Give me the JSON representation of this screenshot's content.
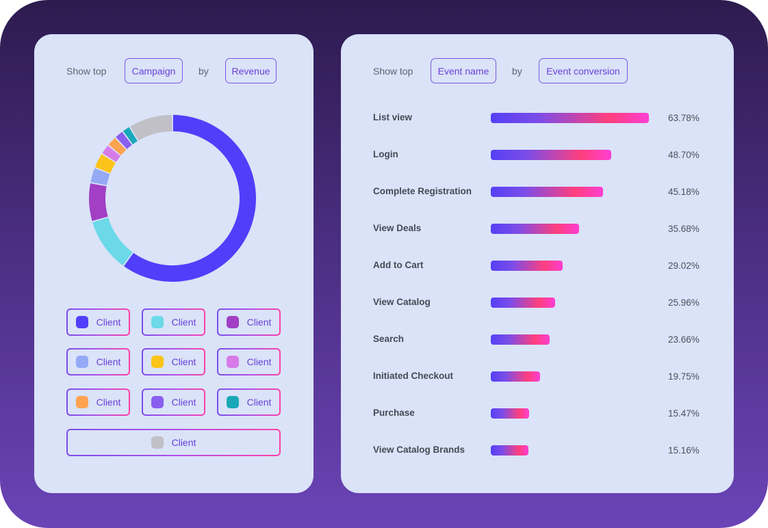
{
  "left_panel": {
    "show_top_label": "Show top",
    "dimension_pill": "Campaign",
    "by_label": "by",
    "metric_pill": "Revenue"
  },
  "right_panel": {
    "show_top_label": "Show top",
    "dimension_pill": "Event name",
    "by_label": "by",
    "metric_pill": "Event conversion"
  },
  "legend": [
    {
      "label": "Client",
      "color": "#4f3ffb"
    },
    {
      "label": "Client",
      "color": "#6bd9e8"
    },
    {
      "label": "Client",
      "color": "#a23fc4"
    },
    {
      "label": "Client",
      "color": "#95aaf5"
    },
    {
      "label": "Client",
      "color": "#fcc419"
    },
    {
      "label": "Client",
      "color": "#d77be8"
    },
    {
      "label": "Client",
      "color": "#ffa351"
    },
    {
      "label": "Client",
      "color": "#8a5ff0"
    },
    {
      "label": "Client",
      "color": "#1aa8b8"
    },
    {
      "label": "Client",
      "color": "#c0c0c6"
    }
  ],
  "chart_data": [
    {
      "type": "pie",
      "title": "",
      "donut": true,
      "slices": [
        {
          "label": "Client",
          "value": 60.0,
          "color": "#4f3ffb"
        },
        {
          "label": "Client",
          "value": 10.5,
          "color": "#6bd9e8"
        },
        {
          "label": "Client",
          "value": 7.5,
          "color": "#a23fc4"
        },
        {
          "label": "Client",
          "value": 3.0,
          "color": "#95aaf5"
        },
        {
          "label": "Client",
          "value": 3.0,
          "color": "#fcc419"
        },
        {
          "label": "Client",
          "value": 2.0,
          "color": "#d77be8"
        },
        {
          "label": "Client",
          "value": 2.0,
          "color": "#ffa351"
        },
        {
          "label": "Client",
          "value": 1.8,
          "color": "#8a5ff0"
        },
        {
          "label": "Client",
          "value": 1.6,
          "color": "#1aa8b8"
        },
        {
          "label": "Client",
          "value": 8.6,
          "color": "#c0c0c6"
        }
      ]
    },
    {
      "type": "bar",
      "orientation": "horizontal",
      "categories": [
        "List view",
        "Login",
        "Complete Registration",
        "View Deals",
        "Add to Cart",
        "View Catalog",
        "Search",
        "Initiated Checkout",
        "Purchase",
        "View Catalog Brands"
      ],
      "values": [
        63.78,
        48.7,
        45.18,
        35.68,
        29.02,
        25.96,
        23.66,
        19.75,
        15.47,
        15.16
      ],
      "value_labels": [
        "63.78%",
        "48.70%",
        "45.18%",
        "35.68%",
        "29.02%",
        "25.96%",
        "23.66%",
        "19.75%",
        "15.47%",
        "15.16%"
      ],
      "xlim": [
        0,
        63.78
      ]
    }
  ]
}
